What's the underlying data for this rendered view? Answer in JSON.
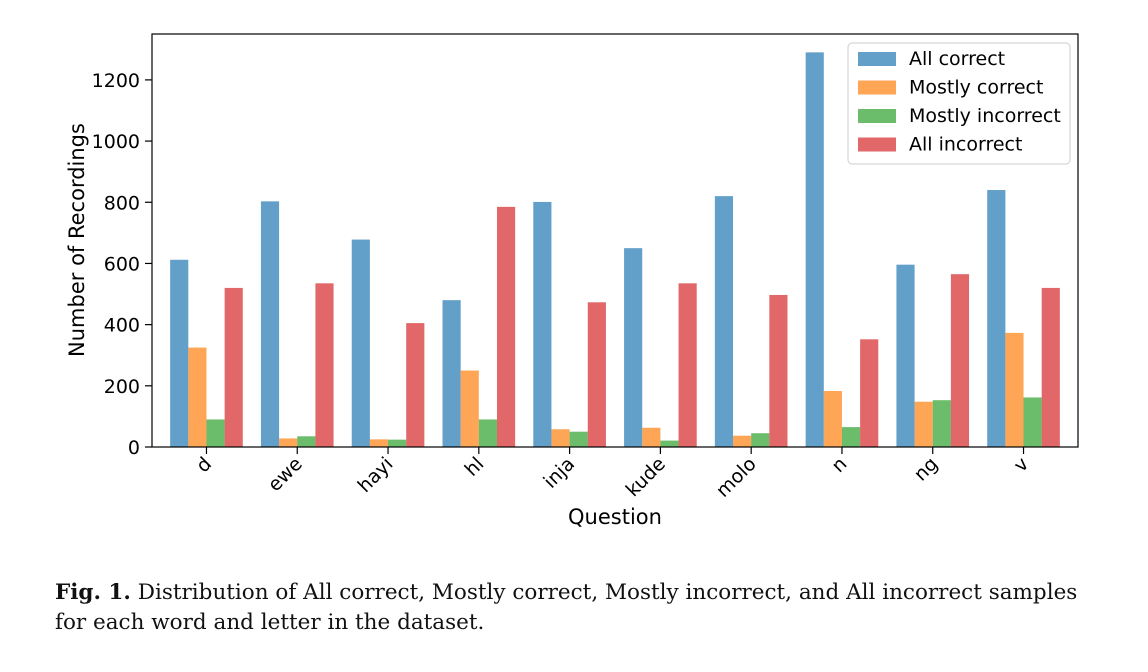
{
  "chart_data": {
    "type": "bar",
    "categories": [
      "d",
      "ewe",
      "hayi",
      "hl",
      "inja",
      "kude",
      "molo",
      "n",
      "ng",
      "v"
    ],
    "series": [
      {
        "name": "All correct",
        "color": "#1f77b4",
        "values": [
          612,
          803,
          678,
          480,
          801,
          650,
          820,
          1290,
          596,
          840
        ]
      },
      {
        "name": "Mostly correct",
        "color": "#ff7f0e",
        "values": [
          325,
          28,
          25,
          250,
          58,
          63,
          37,
          183,
          148,
          373
        ]
      },
      {
        "name": "Mostly incorrect",
        "color": "#2ca02c",
        "values": [
          90,
          35,
          24,
          90,
          50,
          21,
          45,
          65,
          153,
          162
        ]
      },
      {
        "name": "All incorrect",
        "color": "#d62728",
        "values": [
          520,
          535,
          405,
          785,
          473,
          535,
          497,
          352,
          565,
          520
        ]
      }
    ],
    "xlabel": "Question",
    "ylabel": "Number of Recordings",
    "ylim": [
      0,
      1350
    ],
    "yticks": [
      0,
      200,
      400,
      600,
      800,
      1000,
      1200
    ],
    "legend_position": "top-right",
    "grid": false
  },
  "caption": {
    "label": "Fig. 1.",
    "text": "Distribution of All correct, Mostly correct, Mostly incorrect, and All incorrect samples for each word and letter in the dataset."
  }
}
